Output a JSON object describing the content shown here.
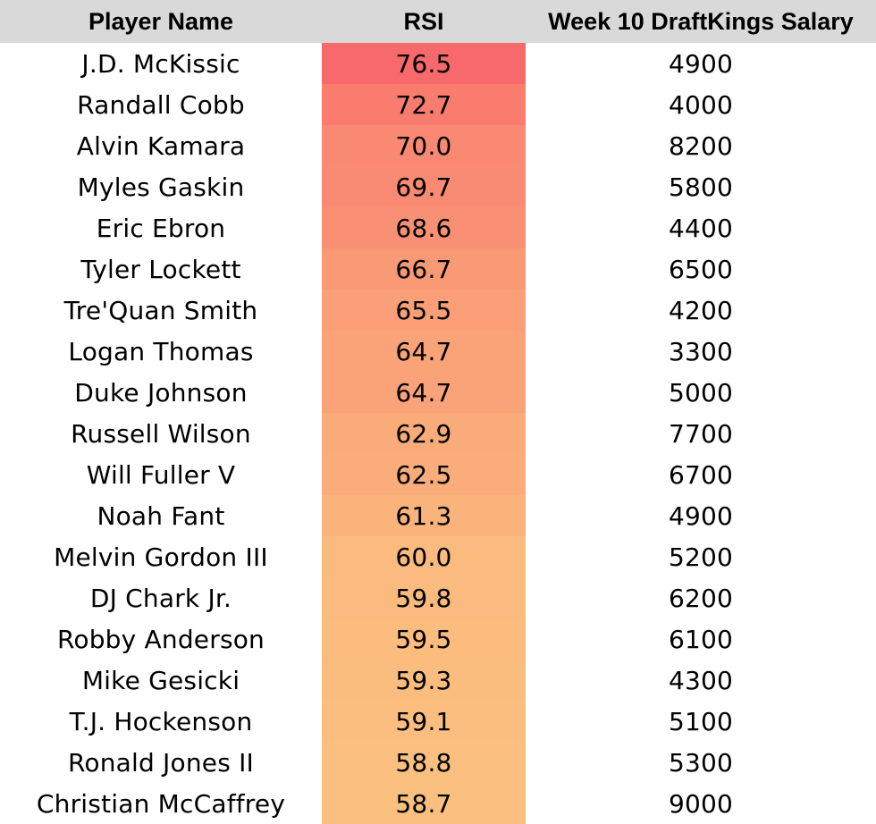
{
  "table": {
    "headers": {
      "name": "Player Name",
      "rsi": "RSI",
      "salary": "Week 10 DraftKings Salary"
    },
    "rows": [
      {
        "name": "J.D. McKissic",
        "rsi": "76.5",
        "salary": "4900"
      },
      {
        "name": "Randall Cobb",
        "rsi": "72.7",
        "salary": "4000"
      },
      {
        "name": "Alvin Kamara",
        "rsi": "70.0",
        "salary": "8200"
      },
      {
        "name": "Myles Gaskin",
        "rsi": "69.7",
        "salary": "5800"
      },
      {
        "name": "Eric Ebron",
        "rsi": "68.6",
        "salary": "4400"
      },
      {
        "name": "Tyler Lockett",
        "rsi": "66.7",
        "salary": "6500"
      },
      {
        "name": "Tre'Quan Smith",
        "rsi": "65.5",
        "salary": "4200"
      },
      {
        "name": "Logan Thomas",
        "rsi": "64.7",
        "salary": "3300"
      },
      {
        "name": "Duke Johnson",
        "rsi": "64.7",
        "salary": "5000"
      },
      {
        "name": "Russell Wilson",
        "rsi": "62.9",
        "salary": "7700"
      },
      {
        "name": "Will Fuller V",
        "rsi": "62.5",
        "salary": "6700"
      },
      {
        "name": "Noah Fant",
        "rsi": "61.3",
        "salary": "4900"
      },
      {
        "name": "Melvin Gordon III",
        "rsi": "60.0",
        "salary": "5200"
      },
      {
        "name": "DJ Chark Jr.",
        "rsi": "59.8",
        "salary": "6200"
      },
      {
        "name": "Robby Anderson",
        "rsi": "59.5",
        "salary": "6100"
      },
      {
        "name": "Mike Gesicki",
        "rsi": "59.3",
        "salary": "4300"
      },
      {
        "name": "T.J. Hockenson",
        "rsi": "59.1",
        "salary": "5100"
      },
      {
        "name": "Ronald Jones II",
        "rsi": "58.8",
        "salary": "5300"
      },
      {
        "name": "Christian McCaffrey",
        "rsi": "58.7",
        "salary": "9000"
      }
    ]
  },
  "colors": {
    "header_bg": "#d9d9d9",
    "heat_high": "#f8696b",
    "heat_low": "#fbc07f",
    "accent_mark": "#2e8b3e"
  }
}
